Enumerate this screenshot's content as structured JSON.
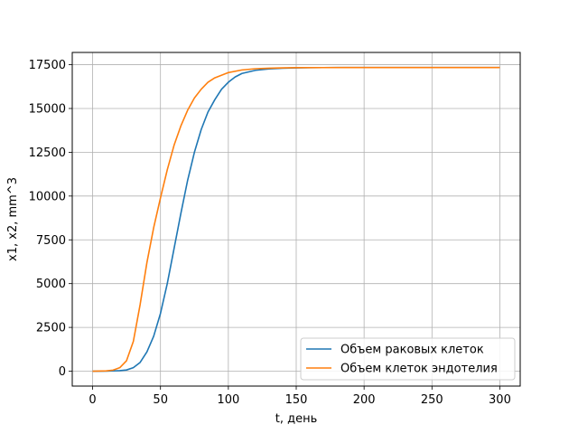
{
  "chart_data": {
    "type": "line",
    "title": "",
    "xlabel": "t, день",
    "ylabel": "x1, x2, mm^3",
    "xlim": [
      -15,
      315
    ],
    "ylim": [
      -850,
      18200
    ],
    "xticks": [
      0,
      50,
      100,
      150,
      200,
      250,
      300
    ],
    "yticks": [
      0,
      2500,
      5000,
      7500,
      10000,
      12500,
      15000,
      17500
    ],
    "grid": true,
    "legend_position": "bottom-right",
    "series": [
      {
        "name": "Объем раковых клеток",
        "color": "#1f77b4",
        "x": [
          0,
          10,
          20,
          25,
          30,
          35,
          40,
          45,
          50,
          55,
          60,
          65,
          70,
          75,
          80,
          85,
          90,
          95,
          100,
          105,
          110,
          120,
          130,
          140,
          150,
          160,
          170,
          180,
          200,
          250,
          300
        ],
        "y": [
          0,
          5,
          30,
          70,
          200,
          500,
          1100,
          2000,
          3300,
          5000,
          7000,
          9000,
          10900,
          12500,
          13800,
          14800,
          15500,
          16100,
          16500,
          16800,
          17000,
          17180,
          17260,
          17300,
          17320,
          17330,
          17335,
          17340,
          17340,
          17340,
          17340
        ]
      },
      {
        "name": "Объем клеток эндотелия",
        "color": "#ff7f0e",
        "x": [
          0,
          10,
          15,
          20,
          25,
          30,
          35,
          40,
          45,
          50,
          55,
          60,
          65,
          70,
          75,
          80,
          85,
          90,
          100,
          110,
          120,
          130,
          140,
          150,
          170,
          200,
          250,
          300
        ],
        "y": [
          0,
          20,
          60,
          200,
          600,
          1700,
          3800,
          6200,
          8200,
          9900,
          11500,
          12900,
          14000,
          14900,
          15600,
          16100,
          16500,
          16750,
          17050,
          17200,
          17270,
          17300,
          17320,
          17330,
          17335,
          17340,
          17340,
          17340
        ]
      }
    ]
  }
}
